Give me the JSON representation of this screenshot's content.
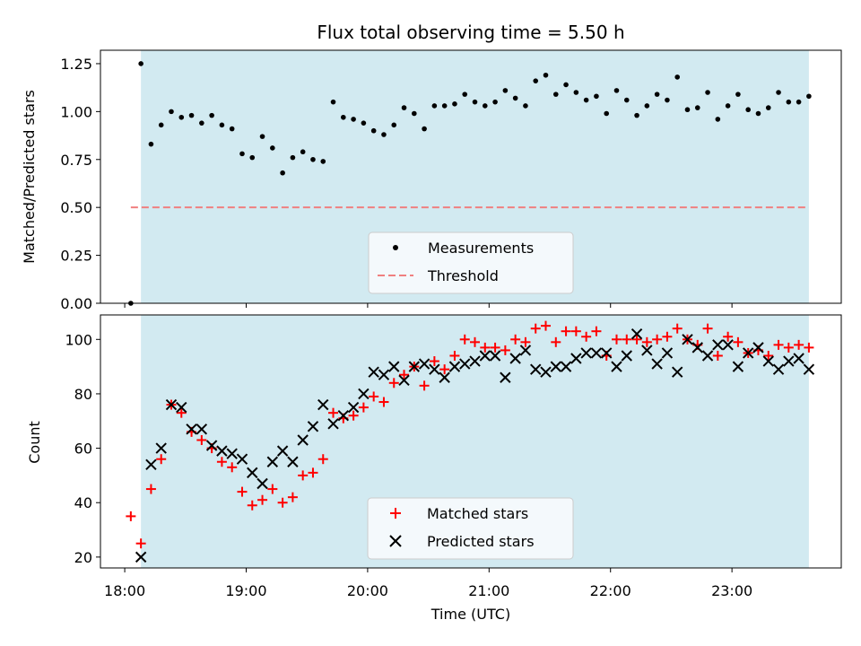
{
  "chart_data": [
    {
      "type": "scatter",
      "title": "Flux total observing time = 5.50 h",
      "ylabel": "Matched/Predicted stars",
      "xlabel": "",
      "x_unit": "time_utc",
      "xlim": [
        "17:48",
        "23:54"
      ],
      "ylim": [
        0,
        1.32
      ],
      "yticks": [
        "0.00",
        "0.25",
        "0.50",
        "0.75",
        "1.00",
        "1.25"
      ],
      "yticks_values": [
        0,
        0.25,
        0.5,
        0.75,
        1.0,
        1.25
      ],
      "xticks_values": [
        "18:00",
        "19:00",
        "20:00",
        "21:00",
        "22:00",
        "23:00"
      ],
      "grid": false,
      "legend_placement": "lower-center",
      "observing_window": [
        "18:08",
        "23:38"
      ],
      "threshold": 0.5,
      "series": [
        {
          "name": "Measurements",
          "marker": "dot",
          "color": "#000000",
          "points": [
            [
              "18:03",
              0.0
            ],
            [
              "18:08",
              1.25
            ],
            [
              "18:13",
              0.83
            ],
            [
              "18:18",
              0.93
            ],
            [
              "18:23",
              1.0
            ],
            [
              "18:28",
              0.97
            ],
            [
              "18:33",
              0.98
            ],
            [
              "18:38",
              0.94
            ],
            [
              "18:43",
              0.98
            ],
            [
              "18:48",
              0.93
            ],
            [
              "18:53",
              0.91
            ],
            [
              "18:58",
              0.78
            ],
            [
              "19:03",
              0.76
            ],
            [
              "19:08",
              0.87
            ],
            [
              "19:13",
              0.81
            ],
            [
              "19:18",
              0.68
            ],
            [
              "19:23",
              0.76
            ],
            [
              "19:28",
              0.79
            ],
            [
              "19:33",
              0.75
            ],
            [
              "19:38",
              0.74
            ],
            [
              "19:43",
              1.05
            ],
            [
              "19:48",
              0.97
            ],
            [
              "19:53",
              0.96
            ],
            [
              "19:58",
              0.94
            ],
            [
              "20:03",
              0.9
            ],
            [
              "20:08",
              0.88
            ],
            [
              "20:13",
              0.93
            ],
            [
              "20:18",
              1.02
            ],
            [
              "20:23",
              0.99
            ],
            [
              "20:28",
              0.91
            ],
            [
              "20:33",
              1.03
            ],
            [
              "20:38",
              1.03
            ],
            [
              "20:43",
              1.04
            ],
            [
              "20:48",
              1.09
            ],
            [
              "20:53",
              1.05
            ],
            [
              "20:58",
              1.03
            ],
            [
              "21:03",
              1.05
            ],
            [
              "21:08",
              1.11
            ],
            [
              "21:13",
              1.07
            ],
            [
              "21:18",
              1.03
            ],
            [
              "21:23",
              1.16
            ],
            [
              "21:28",
              1.19
            ],
            [
              "21:33",
              1.09
            ],
            [
              "21:38",
              1.14
            ],
            [
              "21:43",
              1.1
            ],
            [
              "21:48",
              1.06
            ],
            [
              "21:53",
              1.08
            ],
            [
              "21:58",
              0.99
            ],
            [
              "22:03",
              1.11
            ],
            [
              "22:08",
              1.06
            ],
            [
              "22:13",
              0.98
            ],
            [
              "22:18",
              1.03
            ],
            [
              "22:23",
              1.09
            ],
            [
              "22:28",
              1.06
            ],
            [
              "22:33",
              1.18
            ],
            [
              "22:38",
              1.01
            ],
            [
              "22:43",
              1.02
            ],
            [
              "22:48",
              1.1
            ],
            [
              "22:53",
              0.96
            ],
            [
              "22:58",
              1.03
            ],
            [
              "23:03",
              1.09
            ],
            [
              "23:08",
              1.01
            ],
            [
              "23:13",
              0.99
            ],
            [
              "23:18",
              1.02
            ],
            [
              "23:23",
              1.1
            ],
            [
              "23:28",
              1.05
            ],
            [
              "23:33",
              1.05
            ],
            [
              "23:38",
              1.08
            ]
          ]
        },
        {
          "name": "Threshold",
          "style": "dashed",
          "color": "#f08080",
          "points": [
            [
              "18:03",
              0.5
            ],
            [
              "23:38",
              0.5
            ]
          ]
        }
      ]
    },
    {
      "type": "scatter",
      "title": "",
      "ylabel": "Count",
      "xlabel": "Time (UTC)",
      "x_unit": "time_utc",
      "xlim": [
        "17:48",
        "23:54"
      ],
      "ylim": [
        16,
        109
      ],
      "yticks": [
        "20",
        "40",
        "60",
        "80",
        "100"
      ],
      "yticks_values": [
        20,
        40,
        60,
        80,
        100
      ],
      "xticks": [
        "18:00",
        "19:00",
        "20:00",
        "21:00",
        "22:00",
        "23:00"
      ],
      "xticks_values": [
        "18:00",
        "19:00",
        "20:00",
        "21:00",
        "22:00",
        "23:00"
      ],
      "grid": false,
      "legend_placement": "lower-center",
      "observing_window": [
        "18:08",
        "23:38"
      ],
      "series": [
        {
          "name": "Matched stars",
          "marker": "plus",
          "color": "#ff0000",
          "points": [
            [
              "18:03",
              35
            ],
            [
              "18:08",
              25
            ],
            [
              "18:13",
              45
            ],
            [
              "18:18",
              56
            ],
            [
              "18:23",
              76
            ],
            [
              "18:28",
              73
            ],
            [
              "18:33",
              66
            ],
            [
              "18:38",
              63
            ],
            [
              "18:43",
              60
            ],
            [
              "18:48",
              55
            ],
            [
              "18:53",
              53
            ],
            [
              "18:58",
              44
            ],
            [
              "19:03",
              39
            ],
            [
              "19:08",
              41
            ],
            [
              "19:13",
              45
            ],
            [
              "19:18",
              40
            ],
            [
              "19:23",
              42
            ],
            [
              "19:28",
              50
            ],
            [
              "19:33",
              51
            ],
            [
              "19:38",
              56
            ],
            [
              "19:43",
              73
            ],
            [
              "19:48",
              71
            ],
            [
              "19:53",
              72
            ],
            [
              "19:58",
              75
            ],
            [
              "20:03",
              79
            ],
            [
              "20:08",
              77
            ],
            [
              "20:13",
              84
            ],
            [
              "20:18",
              87
            ],
            [
              "20:23",
              90
            ],
            [
              "20:28",
              83
            ],
            [
              "20:33",
              92
            ],
            [
              "20:38",
              89
            ],
            [
              "20:43",
              94
            ],
            [
              "20:48",
              100
            ],
            [
              "20:53",
              99
            ],
            [
              "20:58",
              97
            ],
            [
              "21:03",
              97
            ],
            [
              "21:08",
              96
            ],
            [
              "21:13",
              100
            ],
            [
              "21:18",
              99
            ],
            [
              "21:23",
              104
            ],
            [
              "21:28",
              105
            ],
            [
              "21:33",
              99
            ],
            [
              "21:38",
              103
            ],
            [
              "21:43",
              103
            ],
            [
              "21:48",
              101
            ],
            [
              "21:53",
              103
            ],
            [
              "21:58",
              94
            ],
            [
              "22:03",
              100
            ],
            [
              "22:08",
              100
            ],
            [
              "22:13",
              100
            ],
            [
              "22:18",
              99
            ],
            [
              "22:23",
              100
            ],
            [
              "22:28",
              101
            ],
            [
              "22:33",
              104
            ],
            [
              "22:38",
              100
            ],
            [
              "22:43",
              98
            ],
            [
              "22:48",
              104
            ],
            [
              "22:53",
              94
            ],
            [
              "22:58",
              101
            ],
            [
              "23:03",
              99
            ],
            [
              "23:08",
              95
            ],
            [
              "23:13",
              96
            ],
            [
              "23:18",
              94
            ],
            [
              "23:23",
              98
            ],
            [
              "23:28",
              97
            ],
            [
              "23:33",
              98
            ],
            [
              "23:38",
              97
            ]
          ]
        },
        {
          "name": "Predicted stars",
          "marker": "x",
          "color": "#000000",
          "points": [
            [
              "18:08",
              20
            ],
            [
              "18:13",
              54
            ],
            [
              "18:18",
              60
            ],
            [
              "18:23",
              76
            ],
            [
              "18:28",
              75
            ],
            [
              "18:33",
              67
            ],
            [
              "18:38",
              67
            ],
            [
              "18:43",
              61
            ],
            [
              "18:48",
              59
            ],
            [
              "18:53",
              58
            ],
            [
              "18:58",
              56
            ],
            [
              "19:03",
              51
            ],
            [
              "19:08",
              47
            ],
            [
              "19:13",
              55
            ],
            [
              "19:18",
              59
            ],
            [
              "19:23",
              55
            ],
            [
              "19:28",
              63
            ],
            [
              "19:33",
              68
            ],
            [
              "19:38",
              76
            ],
            [
              "19:43",
              69
            ],
            [
              "19:48",
              72
            ],
            [
              "19:53",
              75
            ],
            [
              "19:58",
              80
            ],
            [
              "20:03",
              88
            ],
            [
              "20:08",
              87
            ],
            [
              "20:13",
              90
            ],
            [
              "20:18",
              85
            ],
            [
              "20:23",
              90
            ],
            [
              "20:28",
              91
            ],
            [
              "20:33",
              89
            ],
            [
              "20:38",
              86
            ],
            [
              "20:43",
              90
            ],
            [
              "20:48",
              91
            ],
            [
              "20:53",
              92
            ],
            [
              "20:58",
              94
            ],
            [
              "21:03",
              94
            ],
            [
              "21:08",
              86
            ],
            [
              "21:13",
              93
            ],
            [
              "21:18",
              96
            ],
            [
              "21:23",
              89
            ],
            [
              "21:28",
              88
            ],
            [
              "21:33",
              90
            ],
            [
              "21:38",
              90
            ],
            [
              "21:43",
              93
            ],
            [
              "21:48",
              95
            ],
            [
              "21:53",
              95
            ],
            [
              "21:58",
              95
            ],
            [
              "22:03",
              90
            ],
            [
              "22:08",
              94
            ],
            [
              "22:13",
              102
            ],
            [
              "22:18",
              96
            ],
            [
              "22:23",
              91
            ],
            [
              "22:28",
              95
            ],
            [
              "22:33",
              88
            ],
            [
              "22:38",
              100
            ],
            [
              "22:43",
              97
            ],
            [
              "22:48",
              94
            ],
            [
              "22:53",
              98
            ],
            [
              "22:58",
              98
            ],
            [
              "23:03",
              90
            ],
            [
              "23:08",
              95
            ],
            [
              "23:13",
              97
            ],
            [
              "23:18",
              92
            ],
            [
              "23:23",
              89
            ],
            [
              "23:28",
              92
            ],
            [
              "23:33",
              93
            ],
            [
              "23:38",
              89
            ]
          ]
        }
      ]
    }
  ],
  "colors": {
    "window_fill": "#add8e6",
    "legend_bg": "#f4f9fc",
    "legend_edge": "#cccccc"
  }
}
